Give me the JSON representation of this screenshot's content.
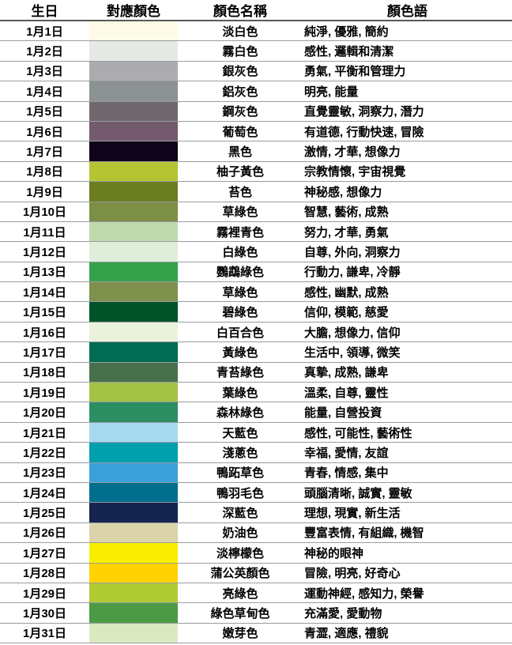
{
  "table": {
    "headers": [
      "生日",
      "對應顏色",
      "顏色名稱",
      "顏色語"
    ],
    "rows": [
      {
        "date": "1月1日",
        "color": "#FDFBE7",
        "name": "淡白色",
        "meaning": "純淨, 優雅, 簡約"
      },
      {
        "date": "1月2日",
        "color": "#E6EAE5",
        "name": "霧白色",
        "meaning": "感性, 邏輯和清潔"
      },
      {
        "date": "1月3日",
        "color": "#ACACAE",
        "name": "銀灰色",
        "meaning": "勇氣, 平衡和管理力"
      },
      {
        "date": "1月4日",
        "color": "#8C9192",
        "name": "鋁灰色",
        "meaning": "明亮, 能量"
      },
      {
        "date": "1月5日",
        "color": "#6E686D",
        "name": "鋼灰色",
        "meaning": "直覺靈敏, 洞察力, 潛力"
      },
      {
        "date": "1月6日",
        "color": "#745A6D",
        "name": "葡萄色",
        "meaning": "有道德, 行動快速, 冒險"
      },
      {
        "date": "1月7日",
        "color": "#0E0318",
        "name": "黑色",
        "meaning": "激情, 才華, 想像力"
      },
      {
        "date": "1月8日",
        "color": "#B5C433",
        "name": "柚子黃色",
        "meaning": "宗教情懷, 宇宙視覺"
      },
      {
        "date": "1月9日",
        "color": "#6A7E1F",
        "name": "苔色",
        "meaning": "神秘感, 想像力"
      },
      {
        "date": "1月10日",
        "color": "#7D8E45",
        "name": "草綠色",
        "meaning": "智慧, 藝術, 成熟"
      },
      {
        "date": "1月11日",
        "color": "#BFD9AD",
        "name": "霧裡青色",
        "meaning": "努力, 才華, 勇氣"
      },
      {
        "date": "1月12日",
        "color": "#E0EDDA",
        "name": "白綠色",
        "meaning": "自尊, 外向, 洞察力"
      },
      {
        "date": "1月13日",
        "color": "#35A24B",
        "name": "鸚鵡綠色",
        "meaning": "行動力, 謙卑, 冷靜"
      },
      {
        "date": "1月14日",
        "color": "#7F914D",
        "name": "草綠色",
        "meaning": "感性, 幽默, 成熟"
      },
      {
        "date": "1月15日",
        "color": "#005229",
        "name": "碧綠色",
        "meaning": "信仰, 模範, 慈愛"
      },
      {
        "date": "1月16日",
        "color": "#EBF2DC",
        "name": "白百合色",
        "meaning": "大膽, 想像力, 信仰"
      },
      {
        "date": "1月17日",
        "color": "#006C53",
        "name": "黃綠色",
        "meaning": "生活中, 領導, 微笑"
      },
      {
        "date": "1月18日",
        "color": "#48714B",
        "name": "青苔綠色",
        "meaning": "真摯, 成熟, 謙卑"
      },
      {
        "date": "1月19日",
        "color": "#A4C345",
        "name": "葉綠色",
        "meaning": "溫柔, 自尊, 靈性"
      },
      {
        "date": "1月20日",
        "color": "#2D8E64",
        "name": "森林綠色",
        "meaning": "能量, 自營投資"
      },
      {
        "date": "1月21日",
        "color": "#A6D9F0",
        "name": "天藍色",
        "meaning": "感性, 可能性, 藝術性"
      },
      {
        "date": "1月22日",
        "color": "#009FAD",
        "name": "淺蔥色",
        "meaning": "幸福, 愛情, 友誼"
      },
      {
        "date": "1月23日",
        "color": "#3CA0DB",
        "name": "鴨跖草色",
        "meaning": "青春, 情感, 集中"
      },
      {
        "date": "1月24日",
        "color": "#006F8E",
        "name": "鴨羽毛色",
        "meaning": "頭腦清晰, 誠實, 靈敏"
      },
      {
        "date": "1月25日",
        "color": "#16254F",
        "name": "深藍色",
        "meaning": "理想, 現實, 新生活"
      },
      {
        "date": "1月26日",
        "color": "#DBD3A9",
        "name": "奶油色",
        "meaning": "豐富表情, 有組織, 機智"
      },
      {
        "date": "1月27日",
        "color": "#FAEE00",
        "name": "淡檸檬色",
        "meaning": "神秘的眼神"
      },
      {
        "date": "1月28日",
        "color": "#FFD100",
        "name": "蒲公英顏色",
        "meaning": "冒險, 明亮, 好奇心"
      },
      {
        "date": "1月29日",
        "color": "#AFCB32",
        "name": "亮綠色",
        "meaning": "運動神經, 感知力, 榮譽"
      },
      {
        "date": "1月30日",
        "color": "#4D9A45",
        "name": "綠色草甸色",
        "meaning": "充滿愛, 愛動物"
      },
      {
        "date": "1月31日",
        "color": "#DCE8C0",
        "name": "嫩芽色",
        "meaning": "青澀, 適應, 禮貌"
      }
    ]
  }
}
